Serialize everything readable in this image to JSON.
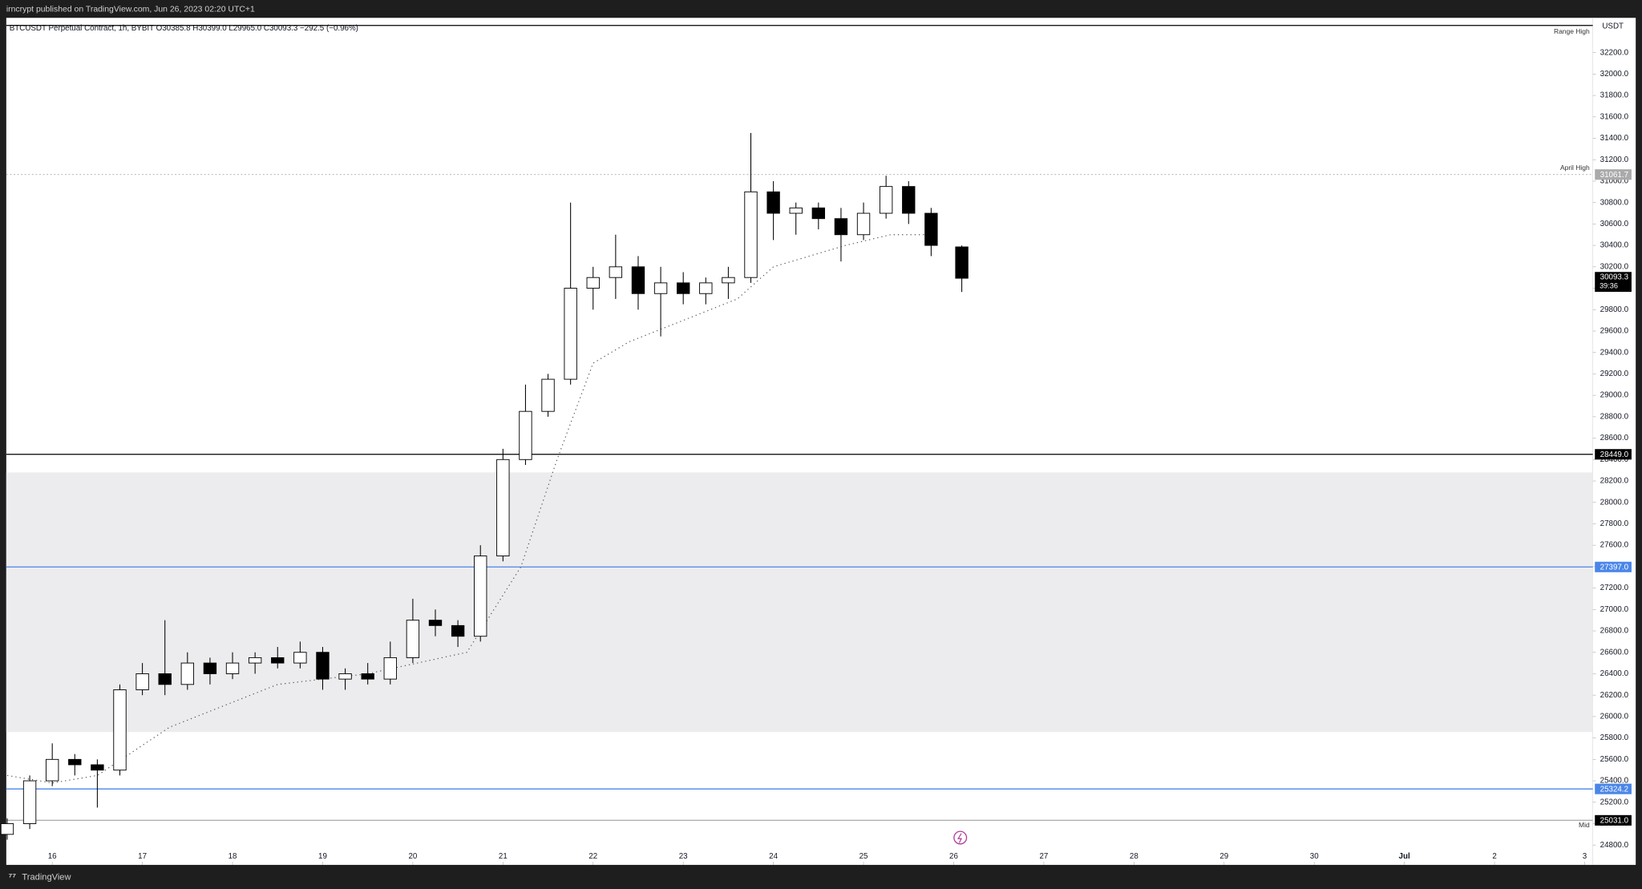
{
  "header": "irncrypt published on TradingView.com, Jun 26, 2023 02:20 UTC+1",
  "footer": "TradingView",
  "chart_data": {
    "type": "candlestick",
    "info": "BTCUSDT Perpetual Contract, 1h, BYBIT  O30385.8  H30399.0  L29965.0  C30093.3  −292.5 (−0.96%)",
    "currency": "USDT",
    "xlim": [
      15.49,
      33.09
    ],
    "xticks": [
      16,
      17,
      18,
      19,
      20,
      21,
      22,
      23,
      24,
      25,
      26,
      27,
      28,
      29,
      30,
      {
        "value": 31,
        "label": "Jul"
      },
      {
        "value": 32,
        "label": "2"
      },
      {
        "value": 33,
        "label": "3"
      }
    ],
    "ylim": [
      24615,
      32525
    ],
    "yticks": [
      {
        "value": 24800,
        "label": "24800.0"
      },
      {
        "value": 25000,
        "label": "25000.0"
      },
      {
        "value": 25200,
        "label": "25200.0"
      },
      {
        "value": 25400,
        "label": "25400.0"
      },
      {
        "value": 25600,
        "label": "25600.0"
      },
      {
        "value": 25800,
        "label": "25800.0"
      },
      {
        "value": 26000,
        "label": "26000.0"
      },
      {
        "value": 26200,
        "label": "26200.0"
      },
      {
        "value": 26400,
        "label": "26400.0"
      },
      {
        "value": 26600,
        "label": "26600.0"
      },
      {
        "value": 26800,
        "label": "26800.0"
      },
      {
        "value": 27000,
        "label": "27000.0"
      },
      {
        "value": 27200,
        "label": "27200.0"
      },
      {
        "value": 27400,
        "label": "27400.0"
      },
      {
        "value": 27600,
        "label": "27600.0"
      },
      {
        "value": 27800,
        "label": "27800.0"
      },
      {
        "value": 28000,
        "label": "28000.0"
      },
      {
        "value": 28200,
        "label": "28200.0"
      },
      {
        "value": 28400,
        "label": "28400.0"
      },
      {
        "value": 28600,
        "label": "28600.0"
      },
      {
        "value": 28800,
        "label": "28800.0"
      },
      {
        "value": 29000,
        "label": "29000.0"
      },
      {
        "value": 29200,
        "label": "29200.0"
      },
      {
        "value": 29400,
        "label": "29400.0"
      },
      {
        "value": 29600,
        "label": "29600.0"
      },
      {
        "value": 29800,
        "label": "29800.0"
      },
      {
        "value": 30000,
        "label": "30000.0"
      },
      {
        "value": 30200,
        "label": "30200.0"
      },
      {
        "value": 30400,
        "label": "30400.0"
      },
      {
        "value": 30600,
        "label": "30600.0"
      },
      {
        "value": 30800,
        "label": "30800.0"
      },
      {
        "value": 31000,
        "label": "31000.0"
      },
      {
        "value": 31200,
        "label": "31200.0"
      },
      {
        "value": 31400,
        "label": "31400.0"
      },
      {
        "value": 31600,
        "label": "31600.0"
      },
      {
        "value": 31800,
        "label": "31800.0"
      },
      {
        "value": 32000,
        "label": "32000.0"
      },
      {
        "value": 32200,
        "label": "32200.0"
      }
    ],
    "up_color": "#ffffff",
    "down_color": "#000000",
    "edge_color": "#000000",
    "x": [
      15.5,
      15.75,
      16.0,
      16.25,
      16.5,
      16.75,
      17.0,
      17.25,
      17.5,
      17.75,
      18.0,
      18.25,
      18.5,
      18.75,
      19.0,
      19.25,
      19.5,
      19.75,
      20.0,
      20.25,
      20.5,
      20.75,
      21.0,
      21.25,
      21.5,
      21.75,
      22.0,
      22.25,
      22.5,
      22.75,
      23.0,
      23.25,
      23.5,
      23.75,
      24.0,
      24.25,
      24.5,
      24.75,
      25.0,
      25.25,
      25.5,
      25.75,
      26.09
    ],
    "open": [
      24900,
      25000,
      25400,
      25600,
      25550,
      25500,
      26250,
      26400,
      26300,
      26500,
      26400,
      26500,
      26550,
      26500,
      26600,
      26350,
      26400,
      26350,
      26550,
      26900,
      26850,
      26750,
      27500,
      28400,
      28850,
      29150,
      30000,
      30100,
      30200,
      29950,
      30050,
      29950,
      30050,
      30100,
      30900,
      30700,
      30750,
      30650,
      30500,
      30700,
      30950,
      30700,
      30385.8
    ],
    "high": [
      25050,
      25450,
      25750,
      25650,
      25600,
      26300,
      26500,
      26900,
      26600,
      26550,
      26600,
      26600,
      26650,
      26700,
      26650,
      26450,
      26500,
      26700,
      27100,
      27000,
      26900,
      27600,
      28500,
      29100,
      29200,
      30800,
      30200,
      30500,
      30300,
      30200,
      30150,
      30100,
      30200,
      31450,
      31000,
      30800,
      30800,
      30750,
      30800,
      31050,
      31000,
      30750,
      30399.0
    ],
    "low": [
      24850,
      24950,
      25350,
      25450,
      25150,
      25450,
      26200,
      26200,
      26250,
      26300,
      26350,
      26400,
      26450,
      26450,
      26250,
      26250,
      26300,
      26300,
      26500,
      26750,
      26650,
      26700,
      27450,
      28350,
      28800,
      29100,
      29800,
      29900,
      29800,
      29550,
      29850,
      29850,
      29900,
      30050,
      30450,
      30500,
      30550,
      30250,
      30450,
      30650,
      30600,
      30300,
      29965.0
    ],
    "close": [
      25000,
      25400,
      25600,
      25550,
      25500,
      26250,
      26400,
      26300,
      26500,
      26400,
      26500,
      26550,
      26500,
      26600,
      26350,
      26400,
      26350,
      26550,
      26900,
      26850,
      26750,
      27500,
      28400,
      28850,
      29150,
      30000,
      30100,
      30200,
      29950,
      30050,
      29950,
      30050,
      30100,
      30900,
      30700,
      30750,
      30650,
      30500,
      30700,
      30950,
      30700,
      30400,
      30093.3
    ],
    "vwap": {
      "color": "#555555",
      "x": [
        15.5,
        16.0,
        16.5,
        17.3,
        18.5,
        19.5,
        20.6,
        21.2,
        21.6,
        22.0,
        22.4,
        23.0,
        23.6,
        24.0,
        24.8,
        25.3,
        25.7
      ],
      "values": [
        25450,
        25380,
        25450,
        25900,
        26300,
        26400,
        26600,
        27400,
        28400,
        29300,
        29500,
        29700,
        29900,
        30200,
        30400,
        30500,
        30500
      ]
    },
    "zone": {
      "from": 25856,
      "to": 28280,
      "color": "#ececee"
    },
    "levels": [
      {
        "name": "Range High",
        "value": 32454,
        "color": "#000000",
        "style": "solid"
      },
      {
        "name": "April High",
        "value": 31061.7,
        "value_label": "31061.7",
        "color": "#9a9a9a",
        "style": "dotted"
      },
      {
        "value": 28449.0,
        "value_label": "28449.0",
        "color": "#000000",
        "style": "solid"
      },
      {
        "value": 27397.0,
        "value_label": "27397.0",
        "color": "#4a86e8",
        "style": "solid"
      },
      {
        "value": 25324.2,
        "value_label": "25324.2",
        "color": "#4a86e8",
        "style": "solid"
      },
      {
        "name": "Mid",
        "value": 25031.0,
        "value_label": "25031.0",
        "color": "#b0b0b0",
        "style": "solid"
      }
    ],
    "last_price": 30093.3,
    "last_price_label": "30093.3",
    "countdown": "39:36"
  }
}
